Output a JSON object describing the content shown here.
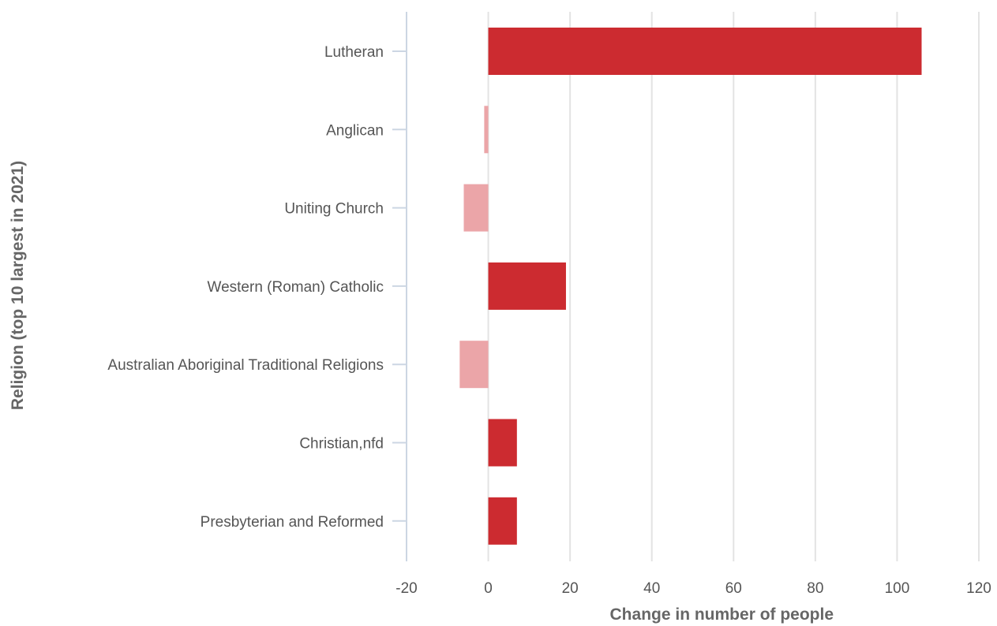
{
  "chart_data": {
    "type": "bar",
    "orientation": "horizontal",
    "title": "",
    "xlabel": "Change in number of people",
    "ylabel": "Religion (top 10 largest in 2021)",
    "xlim": [
      -20,
      120
    ],
    "xticks": [
      -20,
      0,
      20,
      40,
      60,
      80,
      100,
      120
    ],
    "grid": true,
    "categories": [
      "Lutheran",
      "Anglican",
      "Uniting Church",
      "Western (Roman) Catholic",
      "Australian Aboriginal Traditional Religions",
      "Christian,nfd",
      "Presbyterian and Reformed"
    ],
    "values": [
      106,
      -1,
      -6,
      19,
      -7,
      7,
      7
    ],
    "colors": {
      "positive": "#cc2b30",
      "negative": "#eba5a8"
    }
  }
}
